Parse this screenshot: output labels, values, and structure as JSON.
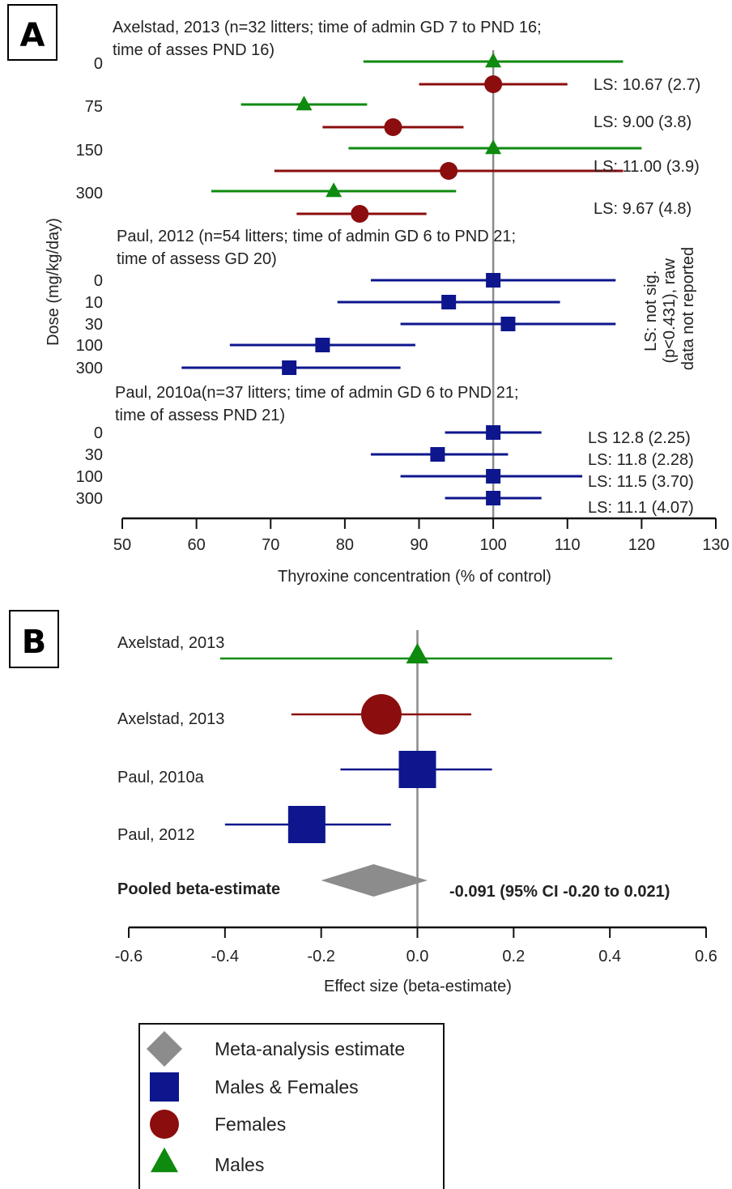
{
  "colors": {
    "males": "#0e8a0e",
    "females": "#8b0d0d",
    "both": "#0d168c",
    "meta": "#8c8c8c",
    "axis": "#111111",
    "refline": "#8c8c8c"
  },
  "panel_a": {
    "letter": "A",
    "ylabel": "Dose (mg/kg/day)",
    "xlabel": "Thyroxine concentration (% of control)",
    "side_note": [
      "LS: not sig.",
      "(p<0.431), raw",
      "data not reported"
    ]
  },
  "panel_b": {
    "letter": "B",
    "xlabel": "Effect size (beta-estimate)",
    "pooled_label": "Pooled beta-estimate",
    "pooled_text": "-0.091 (95% CI -0.20 to 0.021)"
  },
  "legend": {
    "items": [
      {
        "label": "Meta-analysis estimate",
        "shape": "diamond-icon",
        "color": "#8c8c8c"
      },
      {
        "label": "Males & Females",
        "shape": "square-icon",
        "color": "#0d168c"
      },
      {
        "label": "Females",
        "shape": "circle-icon",
        "color": "#8b0d0d"
      },
      {
        "label": "Males",
        "shape": "triangle-icon",
        "color": "#0e8a0e"
      }
    ]
  },
  "chart_data": [
    {
      "type": "forest",
      "xlabel": "Thyroxine concentration (% of control)",
      "ylabel": "Dose (mg/kg/day)",
      "xlim": [
        50,
        130
      ],
      "xticks": [
        50,
        60,
        70,
        80,
        90,
        100,
        110,
        120,
        130
      ],
      "reference_line": 100,
      "groups": [
        {
          "header": [
            "Axelstad, 2013 (n=32 litters; time of admin GD 7 to PND 16;",
            "time of asses PND 16)"
          ],
          "doses": [
            "0",
            "75",
            "150",
            "300"
          ],
          "ls_labels": [
            "LS: 10.67 (2.7)",
            "LS: 9.00 (3.8)",
            "LS: 11.00 (3.9)",
            "LS: 9.67 (4.8)"
          ],
          "points": [
            {
              "dose": "0",
              "sex": "males",
              "value": 100,
              "low": 82.5,
              "high": 117.5
            },
            {
              "dose": "0",
              "sex": "females",
              "value": 100,
              "low": 90,
              "high": 110
            },
            {
              "dose": "75",
              "sex": "males",
              "value": 74.5,
              "low": 66,
              "high": 83
            },
            {
              "dose": "75",
              "sex": "females",
              "value": 86.5,
              "low": 77,
              "high": 96
            },
            {
              "dose": "150",
              "sex": "males",
              "value": 100,
              "low": 80.5,
              "high": 120
            },
            {
              "dose": "150",
              "sex": "females",
              "value": 94,
              "low": 70.5,
              "high": 117.5
            },
            {
              "dose": "300",
              "sex": "males",
              "value": 78.5,
              "low": 62,
              "high": 95
            },
            {
              "dose": "300",
              "sex": "females",
              "value": 82,
              "low": 73.5,
              "high": 91
            }
          ]
        },
        {
          "header": [
            "Paul, 2012 (n=54 litters;  time of admin GD 6 to PND 21;",
            "time of assess GD 20)"
          ],
          "doses": [
            "0",
            "10",
            "30",
            "100",
            "300"
          ],
          "points": [
            {
              "dose": "0",
              "sex": "both",
              "value": 100,
              "low": 83.5,
              "high": 116.5
            },
            {
              "dose": "10",
              "sex": "both",
              "value": 94,
              "low": 79,
              "high": 109
            },
            {
              "dose": "30",
              "sex": "both",
              "value": 102,
              "low": 87.5,
              "high": 116.5
            },
            {
              "dose": "100",
              "sex": "both",
              "value": 77,
              "low": 64.5,
              "high": 89.5
            },
            {
              "dose": "300",
              "sex": "both",
              "value": 72.5,
              "low": 58,
              "high": 87.5
            }
          ]
        },
        {
          "header": [
            "Paul, 2010a(n=37 litters; time of admin GD 6 to PND 21;",
            "time of assess PND 21)"
          ],
          "doses": [
            "0",
            "30",
            "100",
            "300"
          ],
          "ls_labels": [
            "LS 12.8 (2.25)",
            "LS: 11.8 (2.28)",
            "LS: 11.5 (3.70)",
            "LS: 11.1 (4.07)"
          ],
          "points": [
            {
              "dose": "0",
              "sex": "both",
              "value": 100,
              "low": 93.5,
              "high": 106.5
            },
            {
              "dose": "30",
              "sex": "both",
              "value": 92.5,
              "low": 83.5,
              "high": 102
            },
            {
              "dose": "100",
              "sex": "both",
              "value": 100,
              "low": 87.5,
              "high": 112
            },
            {
              "dose": "300",
              "sex": "both",
              "value": 100,
              "low": 93.5,
              "high": 106.5
            }
          ]
        }
      ]
    },
    {
      "type": "forest",
      "xlabel": "Effect size (beta-estimate)",
      "xlim": [
        -0.6,
        0.6
      ],
      "xticks": [
        -0.6,
        -0.4,
        -0.2,
        0.0,
        0.2,
        0.4,
        0.6
      ],
      "xtick_labels": [
        "-0.6",
        "-0.4",
        "-0.2",
        "0.0",
        "0.2",
        "0.4",
        "0.6"
      ],
      "reference_line": 0,
      "studies": [
        {
          "label": "Axelstad, 2013",
          "sex": "males",
          "value": 0.0,
          "low": -0.41,
          "high": 0.405,
          "weight": 0.5
        },
        {
          "label": "Axelstad, 2013",
          "sex": "females",
          "value": -0.075,
          "low": -0.262,
          "high": 0.112,
          "weight": 1.0
        },
        {
          "label": "Paul, 2010a",
          "sex": "both",
          "value": 0.0,
          "low": -0.16,
          "high": 0.155,
          "weight": 1.0
        },
        {
          "label": "Paul, 2012",
          "sex": "both",
          "value": -0.23,
          "low": -0.4,
          "high": -0.055,
          "weight": 1.0
        }
      ],
      "pooled": {
        "label": "Pooled beta-estimate",
        "value": -0.091,
        "low": -0.2,
        "high": 0.021,
        "text": "-0.091 (95% CI -0.20 to 0.021)"
      }
    }
  ]
}
